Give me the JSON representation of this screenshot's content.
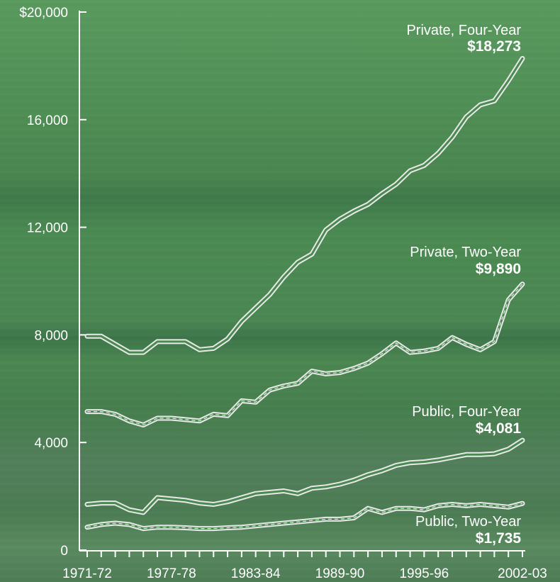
{
  "chart_data": {
    "type": "line",
    "title": "",
    "xlabel": "",
    "ylabel": "",
    "ylim": [
      0,
      20000
    ],
    "y_ticks": [
      0,
      4000,
      8000,
      12000,
      16000,
      20000
    ],
    "y_tick_labels": [
      "0",
      "4,000",
      "8,000",
      "12,000",
      "16,000",
      "$20,000"
    ],
    "x_labels": [
      "1971-72",
      "1977-78",
      "1983-84",
      "1989-90",
      "1995-96",
      "2002-03"
    ],
    "x_label_index": [
      0,
      6,
      12,
      18,
      24,
      31
    ],
    "x_count": 32,
    "grid": false,
    "line_color": "#e8e8e8",
    "series": [
      {
        "name": "Private, Four-Year",
        "value_label": "$18,273",
        "values": [
          7950,
          7950,
          7650,
          7350,
          7350,
          7750,
          7750,
          7750,
          7450,
          7500,
          7850,
          8500,
          9000,
          9500,
          10150,
          10700,
          11000,
          11900,
          12300,
          12600,
          12850,
          13250,
          13600,
          14100,
          14300,
          14750,
          15350,
          16100,
          16550,
          16700,
          17450,
          18273
        ]
      },
      {
        "name": "Private, Two-Year",
        "value_label": "$9,890",
        "values": [
          5150,
          5150,
          5050,
          4800,
          4650,
          4900,
          4900,
          4850,
          4800,
          5050,
          5000,
          5550,
          5500,
          5950,
          6100,
          6200,
          6650,
          6550,
          6600,
          6750,
          6950,
          7300,
          7700,
          7350,
          7400,
          7500,
          7900,
          7650,
          7450,
          7750,
          9300,
          9890
        ]
      },
      {
        "name": "Public, Four-Year",
        "value_label": "$4,081",
        "values": [
          1700,
          1750,
          1750,
          1500,
          1400,
          1950,
          1900,
          1850,
          1750,
          1700,
          1800,
          1950,
          2100,
          2150,
          2200,
          2100,
          2300,
          2350,
          2450,
          2600,
          2800,
          2950,
          3150,
          3250,
          3280,
          3350,
          3450,
          3550,
          3550,
          3580,
          3750,
          4081
        ]
      },
      {
        "name": "Public, Two-Year",
        "value_label": "$1,735",
        "values": [
          850,
          950,
          1000,
          950,
          800,
          850,
          850,
          830,
          800,
          800,
          830,
          850,
          900,
          950,
          1000,
          1050,
          1100,
          1150,
          1150,
          1200,
          1550,
          1400,
          1550,
          1550,
          1500,
          1650,
          1700,
          1650,
          1700,
          1650,
          1600,
          1735
        ]
      }
    ]
  }
}
